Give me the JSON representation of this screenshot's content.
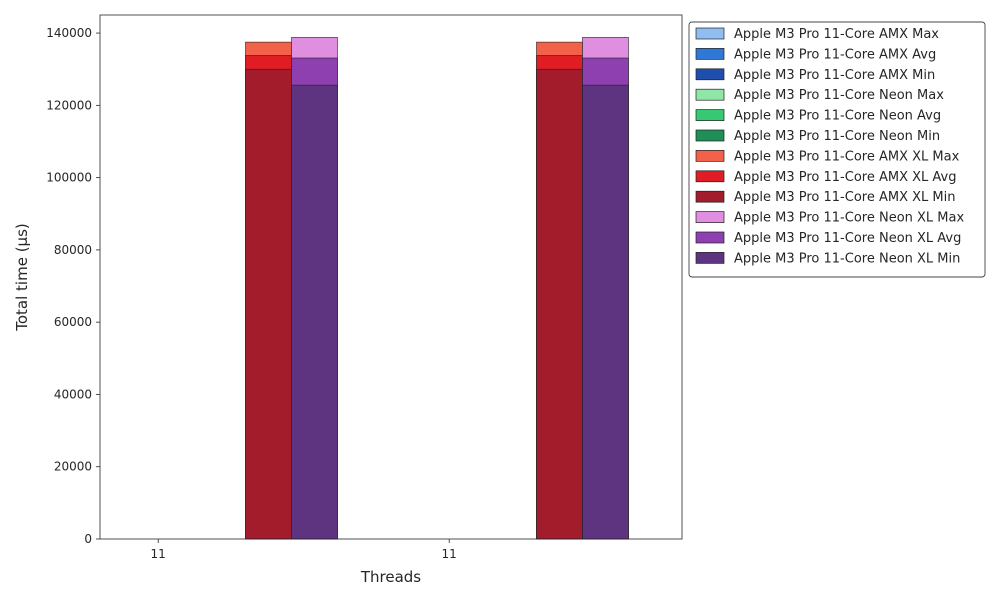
{
  "chart_data": {
    "type": "bar",
    "title": "",
    "xlabel": "Threads",
    "ylabel": "Total time (µs)",
    "categories": [
      "11",
      "11"
    ],
    "ylim": [
      0,
      145000
    ],
    "yticks": [
      0,
      20000,
      40000,
      60000,
      80000,
      100000,
      120000,
      140000
    ],
    "grid": false,
    "legend_position": "outside-right-top",
    "series": [
      {
        "name": "Apple M3 Pro 11-Core AMX Max",
        "color": "#90bef0",
        "group": "AMX",
        "values": [
          null,
          null
        ]
      },
      {
        "name": "Apple M3 Pro 11-Core AMX Avg",
        "color": "#2f78d6",
        "group": "AMX",
        "values": [
          null,
          null
        ]
      },
      {
        "name": "Apple M3 Pro 11-Core AMX Min",
        "color": "#1f4fae",
        "group": "AMX",
        "values": [
          null,
          null
        ]
      },
      {
        "name": "Apple M3 Pro 11-Core Neon Max",
        "color": "#90e6a6",
        "group": "Neon",
        "values": [
          null,
          null
        ]
      },
      {
        "name": "Apple M3 Pro 11-Core Neon Avg",
        "color": "#36c972",
        "group": "Neon",
        "values": [
          null,
          null
        ]
      },
      {
        "name": "Apple M3 Pro 11-Core Neon Min",
        "color": "#1f8f58",
        "group": "Neon",
        "values": [
          null,
          null
        ]
      },
      {
        "name": "Apple M3 Pro 11-Core AMX XL Max",
        "color": "#f2614a",
        "group": "AMX XL",
        "values": [
          137500,
          137500
        ]
      },
      {
        "name": "Apple M3 Pro 11-Core AMX XL Avg",
        "color": "#e01d24",
        "group": "AMX XL",
        "values": [
          133800,
          133800
        ]
      },
      {
        "name": "Apple M3 Pro 11-Core AMX XL Min",
        "color": "#a31c2b",
        "group": "AMX XL",
        "values": [
          130000,
          130000
        ]
      },
      {
        "name": "Apple M3 Pro 11-Core Neon XL Max",
        "color": "#e08ee0",
        "group": "Neon XL",
        "values": [
          138800,
          138800
        ]
      },
      {
        "name": "Apple M3 Pro 11-Core Neon XL Avg",
        "color": "#8e3fb0",
        "group": "Neon XL",
        "values": [
          133100,
          133100
        ]
      },
      {
        "name": "Apple M3 Pro 11-Core Neon XL Min",
        "color": "#5e3380",
        "group": "Neon XL",
        "values": [
          125600,
          125600
        ]
      }
    ]
  }
}
